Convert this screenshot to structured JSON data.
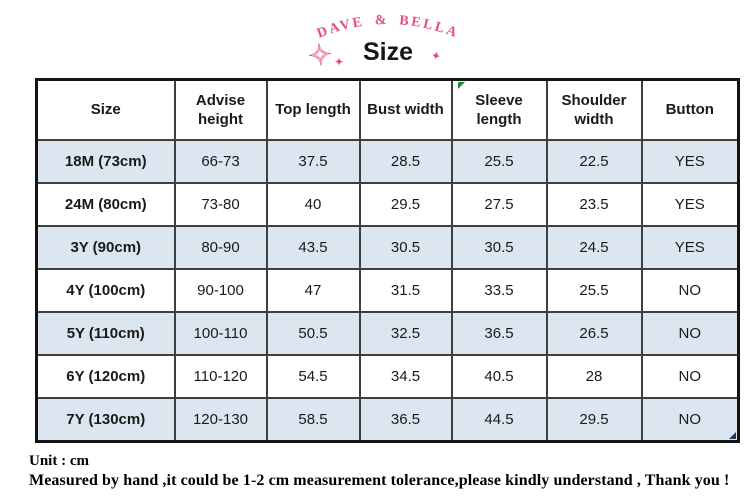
{
  "header": {
    "brand": "DAVE & BELLA",
    "title": "Size"
  },
  "table": {
    "columns": [
      "Size",
      "Advise height",
      "Top length",
      "Bust width",
      "Sleeve length",
      "Shoulder width",
      "Button"
    ],
    "rows": [
      {
        "size": "18M (73cm)",
        "values": [
          "66-73",
          "37.5",
          "28.5",
          "25.5",
          "22.5",
          "YES"
        ]
      },
      {
        "size": "24M (80cm)",
        "values": [
          "73-80",
          "40",
          "29.5",
          "27.5",
          "23.5",
          "YES"
        ]
      },
      {
        "size": "3Y (90cm)",
        "values": [
          "80-90",
          "43.5",
          "30.5",
          "30.5",
          "24.5",
          "YES"
        ]
      },
      {
        "size": "4Y (100cm)",
        "values": [
          "90-100",
          "47",
          "31.5",
          "33.5",
          "25.5",
          "NO"
        ]
      },
      {
        "size": "5Y (110cm)",
        "values": [
          "100-110",
          "50.5",
          "32.5",
          "36.5",
          "26.5",
          "NO"
        ]
      },
      {
        "size": "6Y (120cm)",
        "values": [
          "110-120",
          "54.5",
          "34.5",
          "40.5",
          "28",
          "NO"
        ]
      },
      {
        "size": "7Y (130cm)",
        "values": [
          "120-130",
          "58.5",
          "36.5",
          "44.5",
          "29.5",
          "NO"
        ]
      }
    ]
  },
  "footer": {
    "unit_line": "Unit : cm",
    "note_line": "Measured by hand ,it could be 1-2 cm measurement tolerance,please kindly understand , Thank you !"
  },
  "icons": {
    "sparkle_big": "✧",
    "sparkle_small": "✦",
    "sparkle_right": "✦"
  },
  "colors": {
    "accent_pink": "#e2517c",
    "stripe_blue": "#dce6f1",
    "marker_green": "#1d8a3a",
    "handle_navy": "#1f3864"
  }
}
